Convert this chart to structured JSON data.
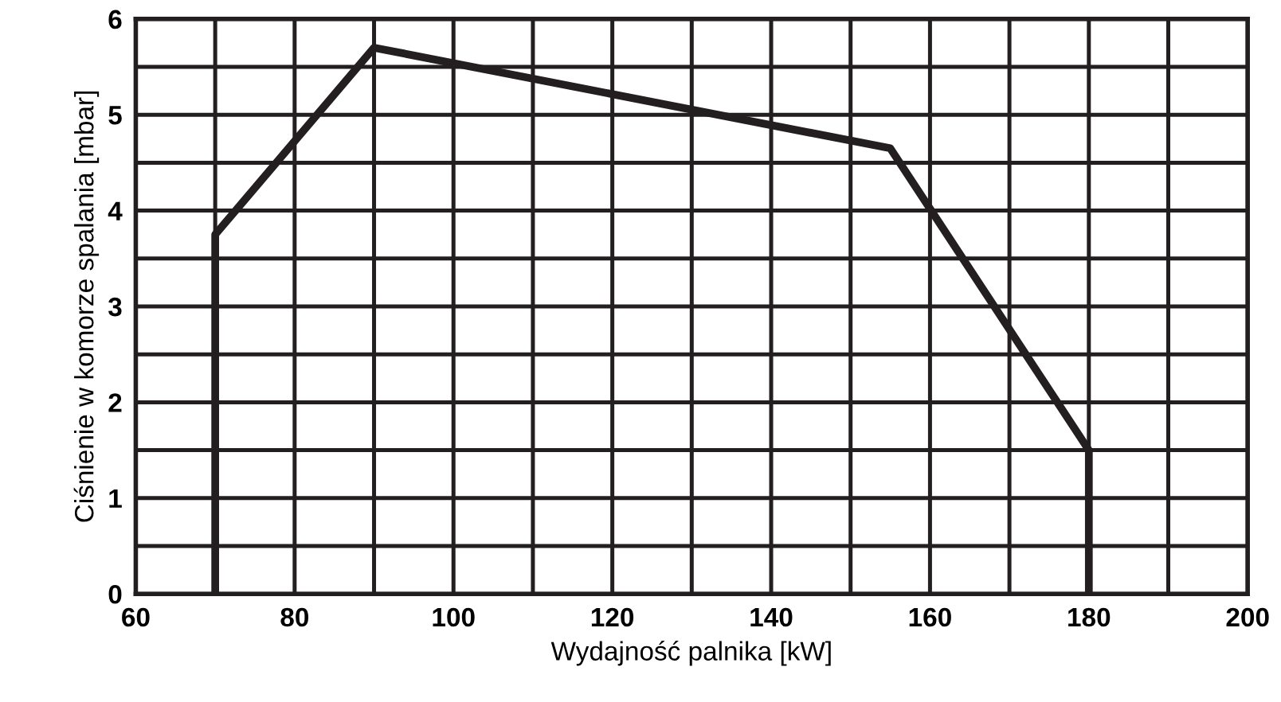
{
  "chart_data": {
    "type": "line",
    "xlabel": "Wydajność palnika [kW]",
    "ylabel": "Ciśnienie w komorze spalania [mbar]",
    "x": [
      70,
      70,
      90,
      155,
      180,
      180
    ],
    "series": [
      {
        "color": "#231f20",
        "values": [
          0,
          3.75,
          5.7,
          4.65,
          1.5,
          0
        ]
      }
    ],
    "xlim": [
      60,
      200
    ],
    "ylim": [
      0,
      6
    ],
    "xticks": [
      60,
      {
        "value": 70,
        "label": null
      },
      80,
      {
        "value": 90,
        "label": null
      },
      100,
      {
        "value": 110,
        "label": null
      },
      120,
      {
        "value": 130,
        "label": null
      },
      140,
      {
        "value": 150,
        "label": null
      },
      160,
      {
        "value": 170,
        "label": null
      },
      180,
      {
        "value": 190,
        "label": null
      },
      200
    ],
    "yticks": [
      0,
      {
        "value": 0.5,
        "label": null
      },
      1,
      {
        "value": 1.5,
        "label": null
      },
      2,
      {
        "value": 2.5,
        "label": null
      },
      3,
      {
        "value": 3.5,
        "label": null
      },
      4,
      {
        "value": 4.5,
        "label": null
      },
      5,
      {
        "value": 5.5,
        "label": null
      },
      6
    ],
    "grid": true,
    "marker": "none",
    "line_style": "solid"
  }
}
